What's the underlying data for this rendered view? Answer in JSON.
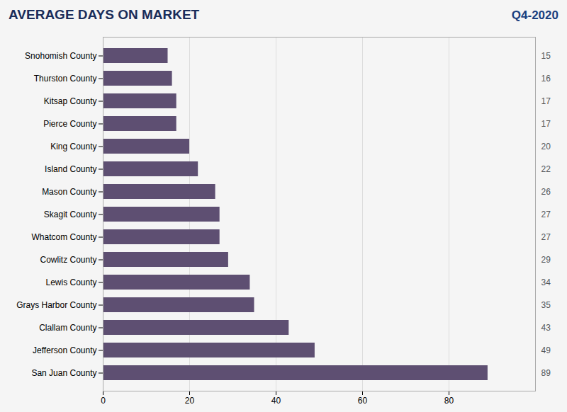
{
  "chart_data": {
    "type": "bar",
    "orientation": "horizontal",
    "title": "AVERAGE DAYS ON MARKET",
    "subtitle": "Q4-2020",
    "categories": [
      "San Juan County",
      "Jefferson County",
      "Clallam County",
      "Grays Harbor County",
      "Lewis County",
      "Cowlitz County",
      "Whatcom County",
      "Skagit County",
      "Mason County",
      "Island County",
      "King County",
      "Pierce County",
      "Kitsap County",
      "Thurston County",
      "Snohomish County"
    ],
    "values": [
      89,
      49,
      43,
      35,
      34,
      29,
      27,
      27,
      26,
      22,
      20,
      17,
      17,
      16,
      15
    ],
    "color": "#5e4f72",
    "xlim": [
      0,
      100
    ],
    "xticks": [
      0,
      20,
      40,
      60,
      80
    ],
    "grid": true,
    "data_labels": true
  }
}
